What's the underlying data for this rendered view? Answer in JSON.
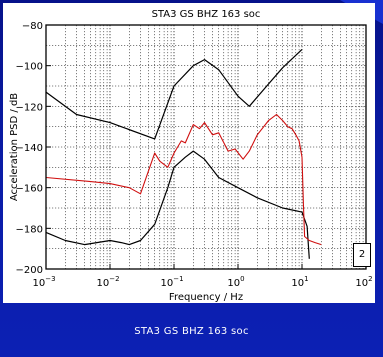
{
  "caption": "STA3 GS BHZ 163 soc",
  "box_label": "2",
  "colors": {
    "background": "#0a1ca6",
    "measured": "#d01010",
    "model": "#000000"
  },
  "chart_data": {
    "type": "line",
    "title": "STA3 GS BHZ 163 soc",
    "xlabel": "Frequency / Hz",
    "ylabel": "Acceleration PSD / dB",
    "x_scale": "log",
    "xlim": [
      0.001,
      100
    ],
    "ylim": [
      -200,
      -80
    ],
    "x_ticks": [
      0.001,
      0.01,
      0.1,
      1,
      10,
      100
    ],
    "x_tick_labels": [
      {
        "base": "10",
        "exp": "-3"
      },
      {
        "base": "10",
        "exp": "-2"
      },
      {
        "base": "10",
        "exp": "-1"
      },
      {
        "base": "10",
        "exp": "0"
      },
      {
        "base": "10",
        "exp": "1"
      },
      {
        "base": "10",
        "exp": "2"
      }
    ],
    "y_ticks": [
      -200,
      -180,
      -160,
      -140,
      -120,
      -100,
      -80
    ],
    "grid": true,
    "series": [
      {
        "role": "upper",
        "color": "#000000",
        "x": [
          0.001,
          0.003,
          0.01,
          0.05,
          0.1,
          0.2,
          0.3,
          0.5,
          1,
          1.5,
          3,
          5,
          10
        ],
        "y": [
          -113,
          -124,
          -128,
          -136,
          -110,
          -100,
          -97,
          -102,
          -115,
          -120,
          -109,
          -101,
          -92
        ]
      },
      {
        "role": "lower",
        "color": "#000000",
        "x": [
          0.001,
          0.002,
          0.004,
          0.01,
          0.015,
          0.02,
          0.03,
          0.05,
          0.08,
          0.1,
          0.15,
          0.2,
          0.3,
          0.5,
          1,
          2,
          5,
          10,
          12,
          13
        ],
        "y": [
          -182,
          -186,
          -188,
          -186,
          -187,
          -188,
          -186,
          -178,
          -160,
          -150,
          -145,
          -142,
          -146,
          -155,
          -160,
          -165,
          -170,
          -172,
          -179,
          -195
        ]
      },
      {
        "role": "measured",
        "color": "#d01010",
        "x": [
          0.001,
          0.005,
          0.01,
          0.02,
          0.03,
          0.05,
          0.06,
          0.08,
          0.1,
          0.13,
          0.15,
          0.2,
          0.25,
          0.3,
          0.4,
          0.5,
          0.7,
          0.9,
          1.2,
          1.5,
          2,
          3,
          4,
          5,
          6,
          7,
          8,
          9,
          10,
          10.5,
          11,
          13,
          16,
          20
        ],
        "y": [
          -155,
          -157,
          -158,
          -160,
          -163,
          -143,
          -147,
          -150,
          -143,
          -137,
          -138,
          -129,
          -131,
          -128,
          -134,
          -133,
          -142,
          -141,
          -146,
          -142,
          -134,
          -127,
          -124,
          -127,
          -130,
          -131,
          -134,
          -137,
          -145,
          -168,
          -184,
          -186,
          -187,
          -188
        ]
      }
    ]
  }
}
